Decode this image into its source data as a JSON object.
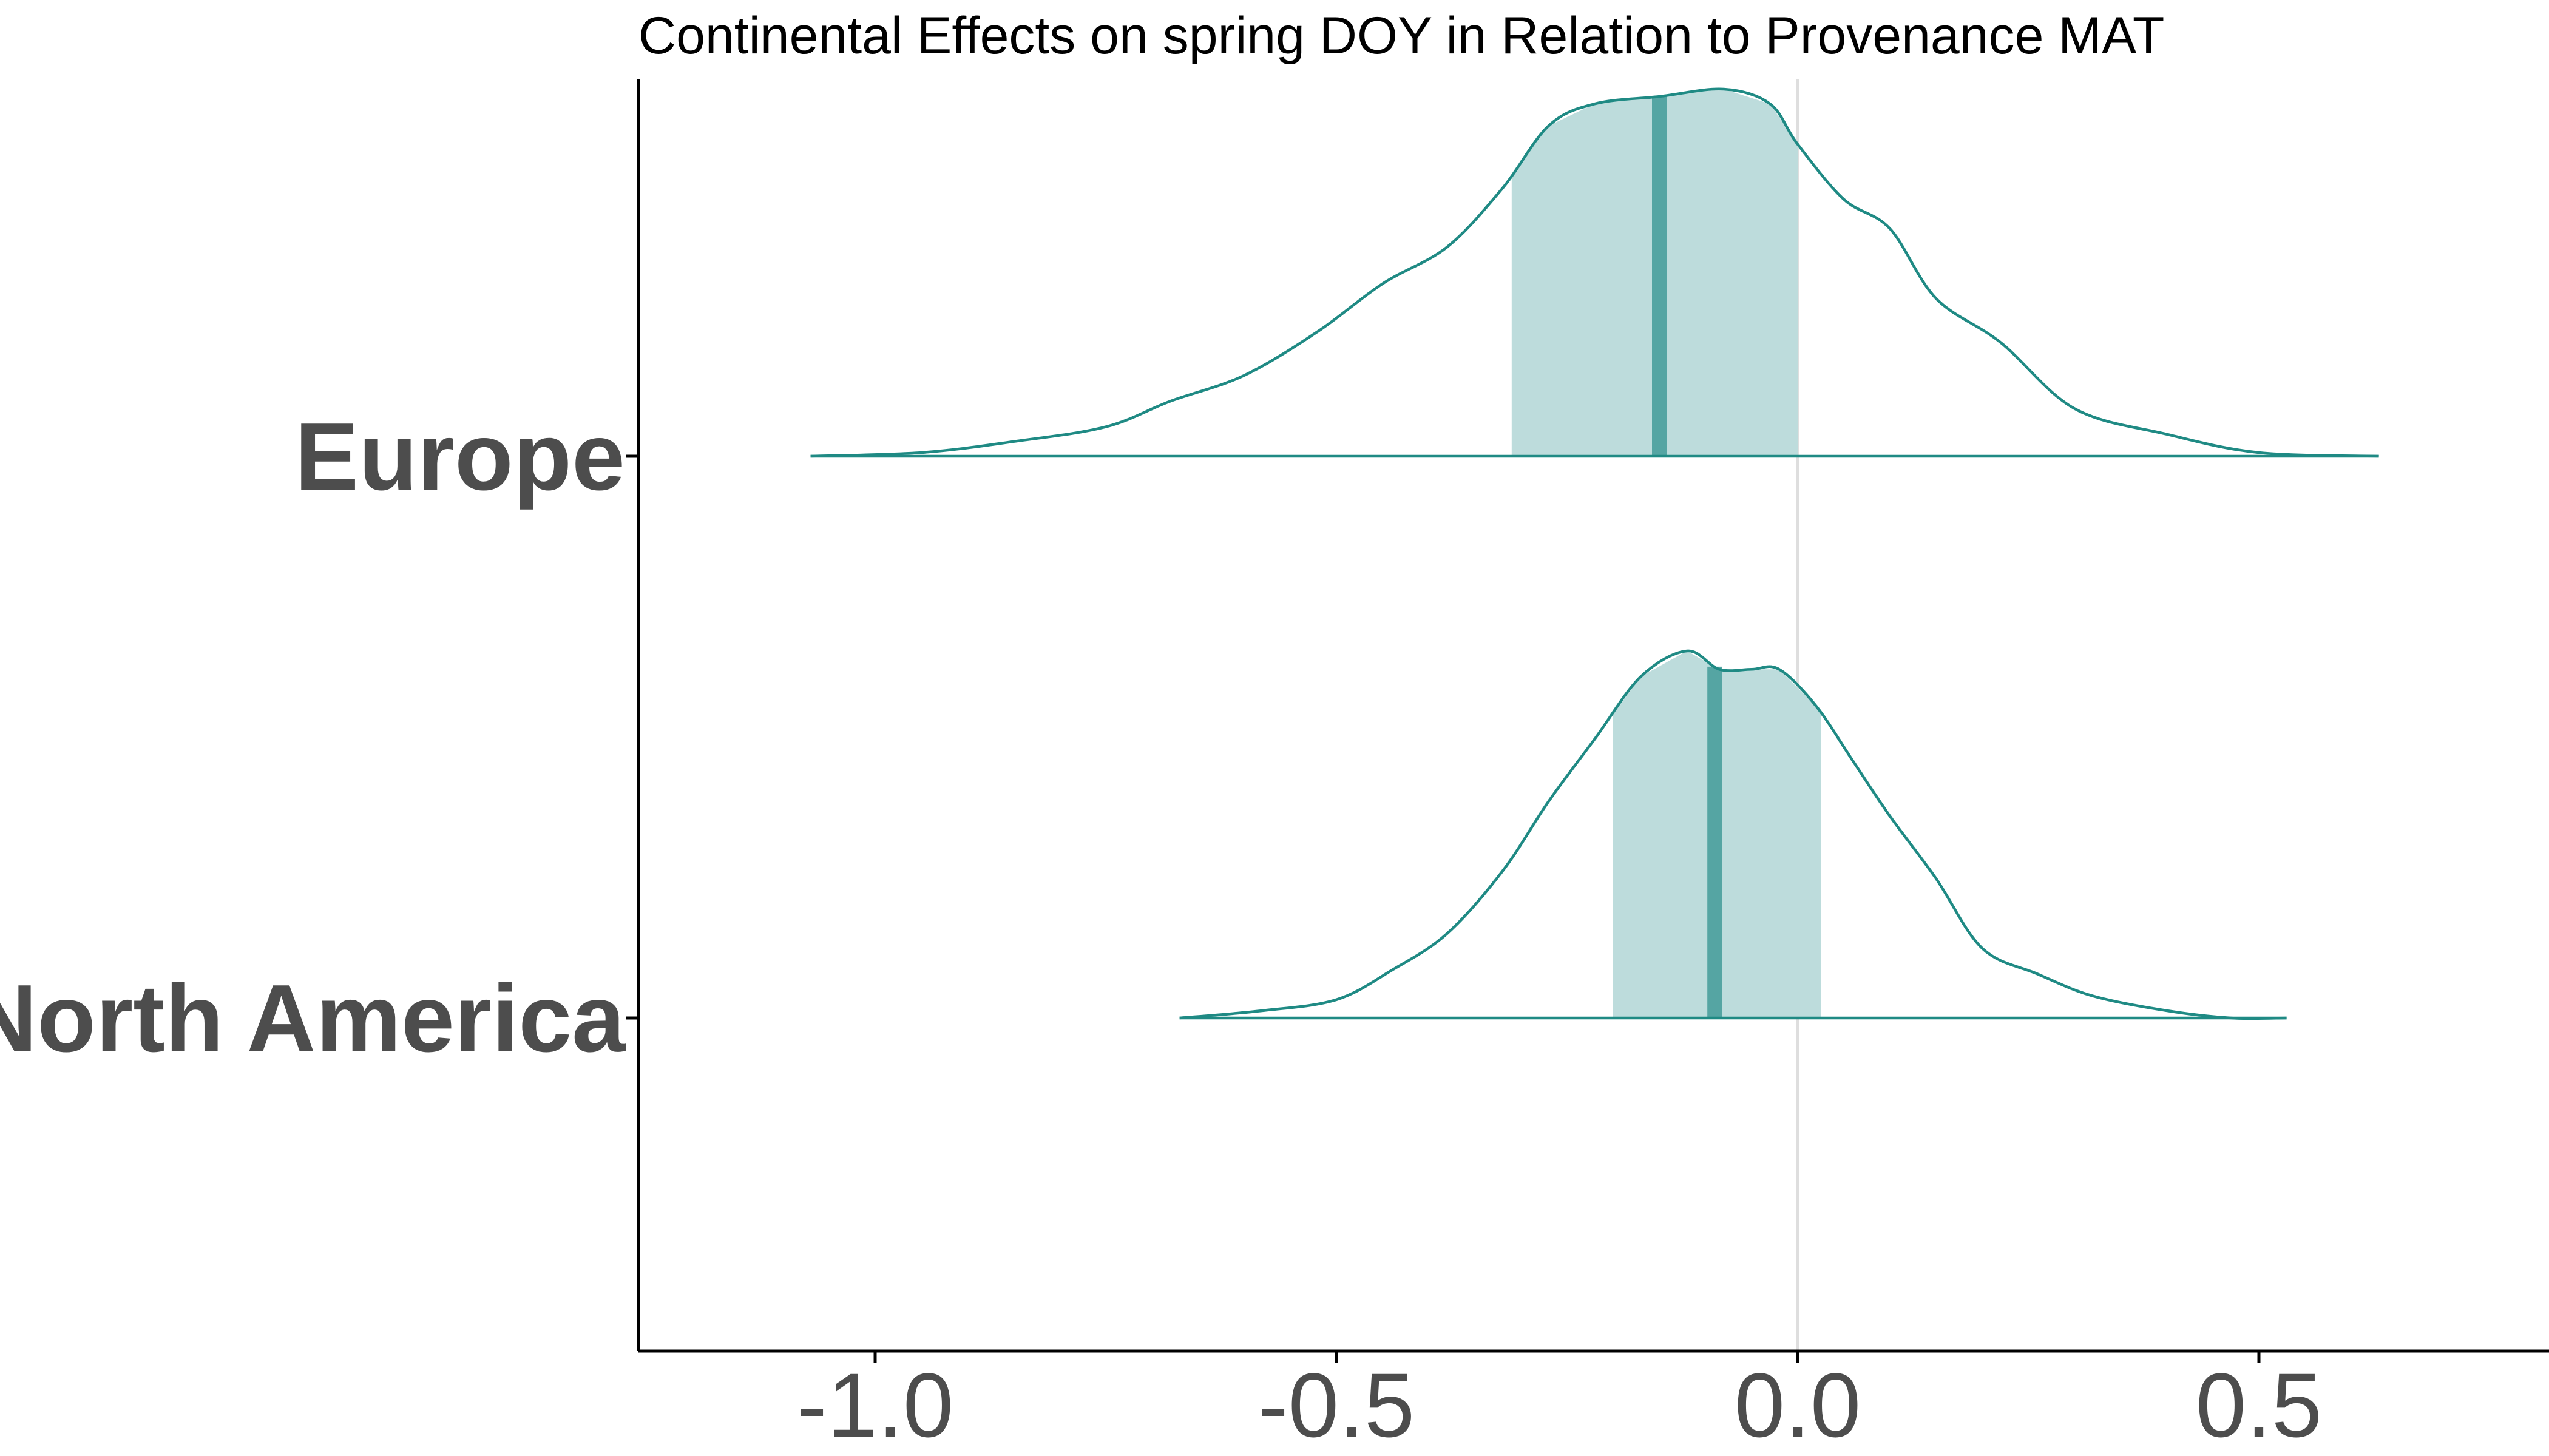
{
  "chart_data": {
    "type": "density-ridges",
    "title": "Continental Effects on spring DOY in Relation to Provenance MAT",
    "xlabel": "",
    "ylabel": "",
    "xlim": [
      -1.25,
      0.8
    ],
    "x_ticks": [
      -1.0,
      -0.5,
      0.0,
      0.5
    ],
    "x_tick_labels": [
      "-1.0",
      "-0.5",
      "0.0",
      "0.5"
    ],
    "reference_line_x": 0.0,
    "grid": false,
    "legend": "none",
    "colors": {
      "line": "#1f8a84",
      "interval_fill": "#bddcdc",
      "median": "#55a5a3",
      "axis": "#000000",
      "reference_line": "#dedede",
      "text": "#4d4d4d"
    },
    "categories": [
      "Europe",
      "North America"
    ],
    "series": [
      {
        "name": "Europe",
        "median": -0.15,
        "interval": [
          -0.31,
          0.0
        ],
        "density": [
          [
            -1.07,
            0.0
          ],
          [
            -0.95,
            0.01
          ],
          [
            -0.85,
            0.04
          ],
          [
            -0.75,
            0.08
          ],
          [
            -0.68,
            0.15
          ],
          [
            -0.6,
            0.22
          ],
          [
            -0.52,
            0.34
          ],
          [
            -0.45,
            0.47
          ],
          [
            -0.38,
            0.57
          ],
          [
            -0.32,
            0.73
          ],
          [
            -0.27,
            0.9
          ],
          [
            -0.22,
            0.96
          ],
          [
            -0.15,
            0.98
          ],
          [
            -0.08,
            1.0
          ],
          [
            -0.03,
            0.96
          ],
          [
            0.0,
            0.85
          ],
          [
            0.05,
            0.7
          ],
          [
            0.1,
            0.62
          ],
          [
            0.15,
            0.43
          ],
          [
            0.22,
            0.31
          ],
          [
            0.3,
            0.13
          ],
          [
            0.4,
            0.06
          ],
          [
            0.5,
            0.01
          ],
          [
            0.63,
            0.0
          ]
        ]
      },
      {
        "name": "North America",
        "median": -0.09,
        "interval": [
          -0.2,
          0.025
        ],
        "density": [
          [
            -0.67,
            0.0
          ],
          [
            -0.58,
            0.02
          ],
          [
            -0.5,
            0.05
          ],
          [
            -0.44,
            0.13
          ],
          [
            -0.38,
            0.23
          ],
          [
            -0.32,
            0.4
          ],
          [
            -0.27,
            0.59
          ],
          [
            -0.22,
            0.76
          ],
          [
            -0.17,
            0.93
          ],
          [
            -0.12,
            1.0
          ],
          [
            -0.085,
            0.95
          ],
          [
            -0.05,
            0.95
          ],
          [
            -0.02,
            0.95
          ],
          [
            0.02,
            0.85
          ],
          [
            0.06,
            0.7
          ],
          [
            0.1,
            0.55
          ],
          [
            0.15,
            0.38
          ],
          [
            0.2,
            0.19
          ],
          [
            0.26,
            0.12
          ],
          [
            0.32,
            0.06
          ],
          [
            0.4,
            0.02
          ],
          [
            0.47,
            0.0
          ],
          [
            0.53,
            0.0
          ]
        ]
      }
    ]
  }
}
